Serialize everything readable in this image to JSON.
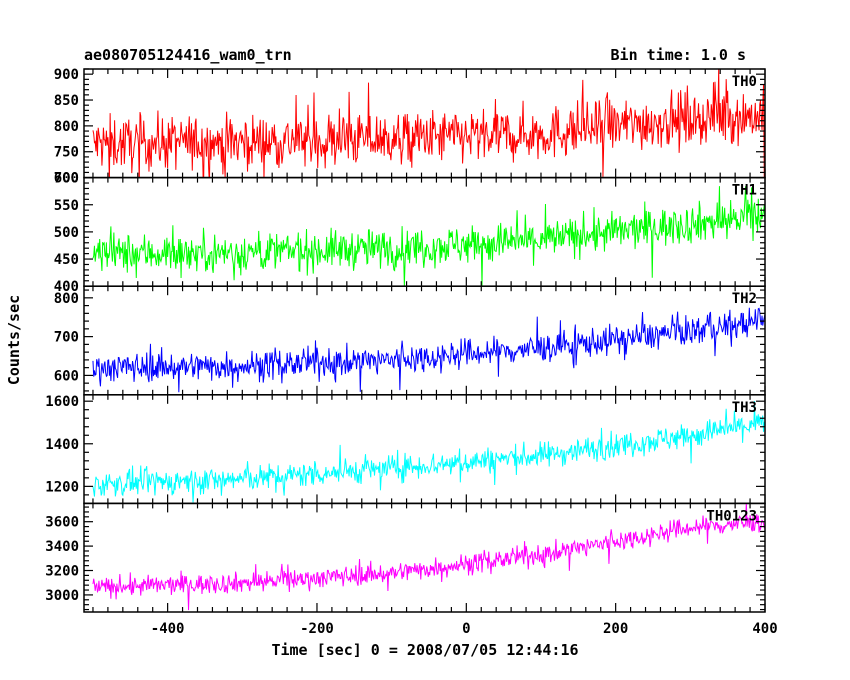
{
  "header": {
    "title": "ae080705124416_wam0_trn",
    "bin_time": "Bin time: 1.0 s"
  },
  "chart_data": {
    "type": "line",
    "xlabel": "Time [sec] 0 = 2008/07/05 12:44:16",
    "ylabel": "Counts/sec",
    "xlim": [
      -512,
      400
    ],
    "xticks": [
      -400,
      -200,
      0,
      200,
      400
    ],
    "bin_time_s": 1.0,
    "panels": [
      {
        "name": "TH0",
        "color": "#ff0000",
        "ylim": [
          700,
          910
        ],
        "yticks": [
          700,
          750,
          800,
          850,
          900
        ],
        "trend": [
          [
            -500,
            765
          ],
          [
            -300,
            770
          ],
          [
            -100,
            775
          ],
          [
            100,
            785
          ],
          [
            300,
            815
          ],
          [
            400,
            820
          ]
        ],
        "noise_sd": 35
      },
      {
        "name": "TH1",
        "color": "#00ff00",
        "ylim": [
          400,
          600
        ],
        "yticks": [
          400,
          450,
          500,
          550,
          600
        ],
        "trend": [
          [
            -500,
            460
          ],
          [
            -300,
            462
          ],
          [
            -100,
            470
          ],
          [
            100,
            485
          ],
          [
            300,
            515
          ],
          [
            400,
            530
          ]
        ],
        "noise_sd": 24
      },
      {
        "name": "TH2",
        "color": "#0000ff",
        "ylim": [
          550,
          830
        ],
        "yticks": [
          600,
          700,
          800
        ],
        "trend": [
          [
            -500,
            620
          ],
          [
            -300,
            625
          ],
          [
            -100,
            640
          ],
          [
            100,
            670
          ],
          [
            300,
            715
          ],
          [
            400,
            740
          ]
        ],
        "noise_sd": 25
      },
      {
        "name": "TH3",
        "color": "#00ffff",
        "ylim": [
          1120,
          1630
        ],
        "yticks": [
          1200,
          1400,
          1600
        ],
        "trend": [
          [
            -500,
            1210
          ],
          [
            -300,
            1235
          ],
          [
            -100,
            1285
          ],
          [
            100,
            1345
          ],
          [
            300,
            1440
          ],
          [
            400,
            1500
          ]
        ],
        "noise_sd": 40
      },
      {
        "name": "TH0123",
        "color": "#ff00ff",
        "ylim": [
          2860,
          3750
        ],
        "yticks": [
          3000,
          3200,
          3400,
          3600
        ],
        "trend": [
          [
            -500,
            3060
          ],
          [
            -300,
            3100
          ],
          [
            -100,
            3180
          ],
          [
            100,
            3330
          ],
          [
            300,
            3550
          ],
          [
            400,
            3600
          ]
        ],
        "noise_sd": 55
      }
    ]
  }
}
